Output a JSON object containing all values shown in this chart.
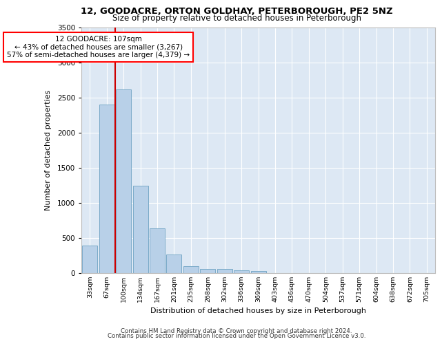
{
  "title1": "12, GOODACRE, ORTON GOLDHAY, PETERBOROUGH, PE2 5NZ",
  "title2": "Size of property relative to detached houses in Peterborough",
  "xlabel": "Distribution of detached houses by size in Peterborough",
  "ylabel": "Number of detached properties",
  "categories": [
    "33sqm",
    "67sqm",
    "100sqm",
    "134sqm",
    "167sqm",
    "201sqm",
    "235sqm",
    "268sqm",
    "302sqm",
    "336sqm",
    "369sqm",
    "403sqm",
    "436sqm",
    "470sqm",
    "504sqm",
    "537sqm",
    "571sqm",
    "604sqm",
    "638sqm",
    "672sqm",
    "705sqm"
  ],
  "values": [
    390,
    2400,
    2610,
    1240,
    640,
    260,
    95,
    60,
    55,
    40,
    25,
    0,
    0,
    0,
    0,
    0,
    0,
    0,
    0,
    0,
    0
  ],
  "bar_color": "#b8d0e8",
  "bar_edge_color": "#7aaac8",
  "red_line_x": 1.5,
  "red_line_color": "#cc0000",
  "annotation_text_line1": "12 GOODACRE: 107sqm",
  "annotation_text_line2": "← 43% of detached houses are smaller (3,267)",
  "annotation_text_line3": "57% of semi-detached houses are larger (4,379) →",
  "ylim": [
    0,
    3500
  ],
  "yticks": [
    0,
    500,
    1000,
    1500,
    2000,
    2500,
    3000,
    3500
  ],
  "background_color": "#dde8f4",
  "grid_color": "#ffffff",
  "footer_line1": "Contains HM Land Registry data © Crown copyright and database right 2024.",
  "footer_line2": "Contains public sector information licensed under the Open Government Licence v3.0."
}
